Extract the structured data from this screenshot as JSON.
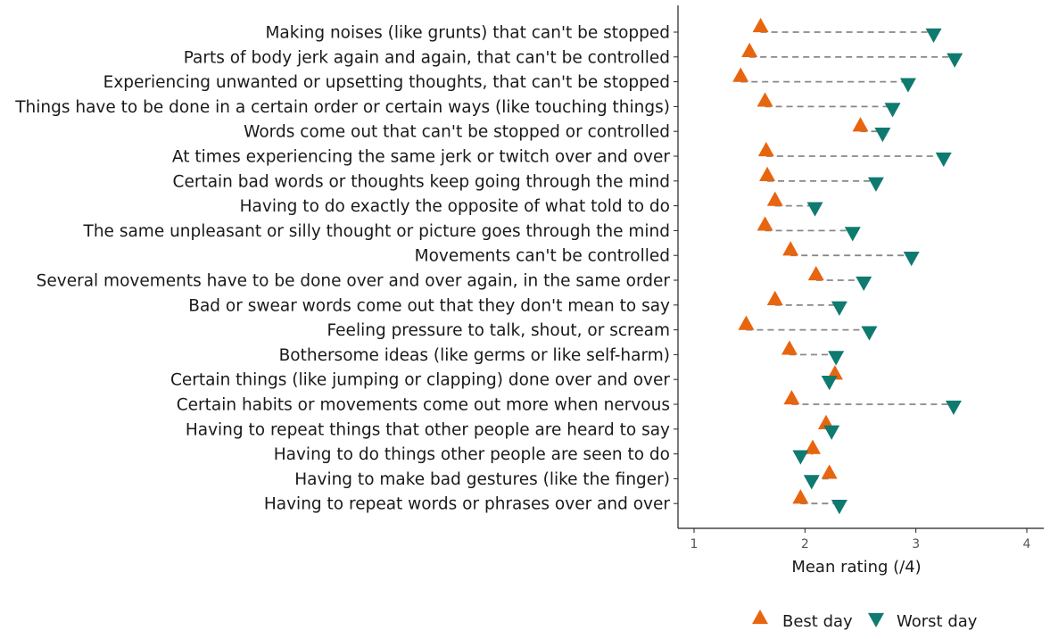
{
  "chart_data": {
    "type": "scatter",
    "xlabel": "Mean rating (/4)",
    "xlim": [
      0.85,
      4.05
    ],
    "xticks": [
      "1",
      "2",
      "3",
      "4"
    ],
    "categories": [
      "Making noises (like grunts) that can't be stopped",
      "Parts of body jerk again and again, that can't be controlled",
      "Experiencing unwanted or upsetting thoughts, that can't be stopped",
      "Things have to be done in a certain order or certain ways (like touching things)",
      "Words come out that can't be stopped or controlled",
      "At times experiencing the same jerk or twitch over and over",
      "Certain bad words or thoughts keep going through the mind",
      "Having to do exactly the opposite of what told to do",
      "The same unpleasant or silly thought or picture goes through the mind",
      "Movements can't be controlled",
      "Several movements have to be done over and over again, in the same order",
      "Bad or swear words come out that they don't mean to say",
      "Feeling pressure to talk, shout, or scream",
      "Bothersome ideas (like germs or like self-harm)",
      "Certain things (like jumping or clapping) done over and over",
      "Certain habits or movements come out more when nervous",
      "Having to repeat things that other people are heard to say",
      "Having to do things other people are seen to do",
      "Having to make bad gestures (like the finger)",
      "Having to repeat words or phrases over and over"
    ],
    "series": [
      {
        "name": "Best day",
        "color": "#E8650F",
        "marker": "triangle-up",
        "values": [
          1.6,
          1.5,
          1.42,
          1.64,
          2.5,
          1.65,
          1.66,
          1.73,
          1.64,
          1.87,
          2.1,
          1.73,
          1.47,
          1.86,
          2.27,
          1.88,
          2.19,
          2.07,
          2.22,
          1.96
        ]
      },
      {
        "name": "Worst day",
        "color": "#0F7A70",
        "marker": "triangle-down",
        "values": [
          3.16,
          3.35,
          2.93,
          2.79,
          2.7,
          3.25,
          2.64,
          2.09,
          2.43,
          2.96,
          2.53,
          2.31,
          2.58,
          2.28,
          2.22,
          3.34,
          2.24,
          1.96,
          2.06,
          2.31
        ]
      }
    ],
    "connector": "dashed",
    "legend_position": "bottom-right",
    "grid": false
  }
}
